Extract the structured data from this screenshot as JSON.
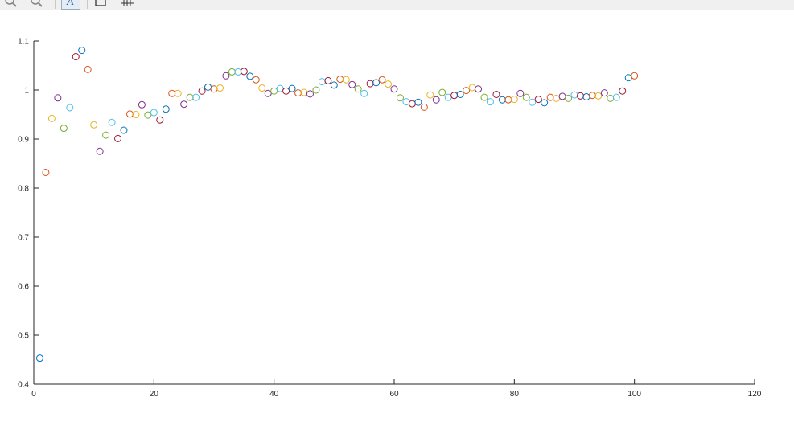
{
  "toolbar": {
    "buttons": [
      {
        "icon": "zoom-in-icon"
      },
      {
        "icon": "zoom-out-icon"
      },
      {
        "icon": "text-insert-icon",
        "glyph": "A"
      },
      {
        "icon": "new-figure-icon"
      },
      {
        "icon": "grid-icon"
      }
    ]
  },
  "chart_data": {
    "type": "scatter",
    "title": "",
    "xlabel": "",
    "ylabel": "",
    "xlim": [
      0,
      120
    ],
    "ylim": [
      0.4,
      1.1
    ],
    "xticks": [
      0,
      20,
      40,
      60,
      80,
      100,
      120
    ],
    "yticks": [
      0.4,
      0.5,
      0.6,
      0.7,
      0.8,
      0.9,
      1,
      1.1
    ],
    "xtick_labels": [
      "0",
      "20",
      "40",
      "60",
      "80",
      "100",
      "120"
    ],
    "ytick_labels": [
      "0.4",
      "0.5",
      "0.6",
      "0.7",
      "0.8",
      "0.9",
      "1",
      "1.1"
    ],
    "grid": false,
    "marker": "circle-open",
    "color_cycle": [
      "#0072BD",
      "#D95319",
      "#EDB120",
      "#7E2F8E",
      "#77AC30",
      "#4DBEEE",
      "#A2142F"
    ],
    "x": [
      1,
      2,
      3,
      4,
      5,
      6,
      7,
      8,
      9,
      10,
      11,
      12,
      13,
      14,
      15,
      16,
      17,
      18,
      19,
      20,
      21,
      22,
      23,
      24,
      25,
      26,
      27,
      28,
      29,
      30,
      31,
      32,
      33,
      34,
      35,
      36,
      37,
      38,
      39,
      40,
      41,
      42,
      43,
      44,
      45,
      46,
      47,
      48,
      49,
      50,
      51,
      52,
      53,
      54,
      55,
      56,
      57,
      58,
      59,
      60,
      61,
      62,
      63,
      64,
      65,
      66,
      67,
      68,
      69,
      70,
      71,
      72,
      73,
      74,
      75,
      76,
      77,
      78,
      79,
      80,
      81,
      82,
      83,
      84,
      85,
      86,
      87,
      88,
      89,
      90,
      91,
      92,
      93,
      94,
      95,
      96,
      97,
      98,
      99,
      100
    ],
    "y": [
      0.453,
      0.832,
      0.942,
      0.984,
      0.922,
      0.964,
      1.068,
      1.081,
      1.042,
      0.929,
      0.875,
      0.908,
      0.934,
      0.901,
      0.918,
      0.951,
      0.95,
      0.97,
      0.949,
      0.954,
      0.939,
      0.961,
      0.993,
      0.993,
      0.971,
      0.985,
      0.985,
      0.998,
      1.006,
      1.002,
      1.004,
      1.029,
      1.037,
      1.037,
      1.038,
      1.028,
      1.021,
      1.004,
      0.993,
      0.998,
      1.003,
      0.998,
      1.003,
      0.994,
      0.995,
      0.992,
      1.0,
      1.017,
      1.019,
      1.01,
      1.022,
      1.021,
      1.011,
      1.002,
      0.993,
      1.013,
      1.015,
      1.021,
      1.012,
      1.002,
      0.984,
      0.976,
      0.972,
      0.975,
      0.965,
      0.99,
      0.98,
      0.995,
      0.985,
      0.989,
      0.991,
      0.999,
      1.005,
      1.002,
      0.985,
      0.976,
      0.991,
      0.98,
      0.98,
      0.981,
      0.993,
      0.985,
      0.975,
      0.981,
      0.974,
      0.985,
      0.983,
      0.987,
      0.983,
      0.99,
      0.988,
      0.986,
      0.989,
      0.988,
      0.994,
      0.983,
      0.985,
      0.998,
      1.025,
      1.029
    ]
  }
}
